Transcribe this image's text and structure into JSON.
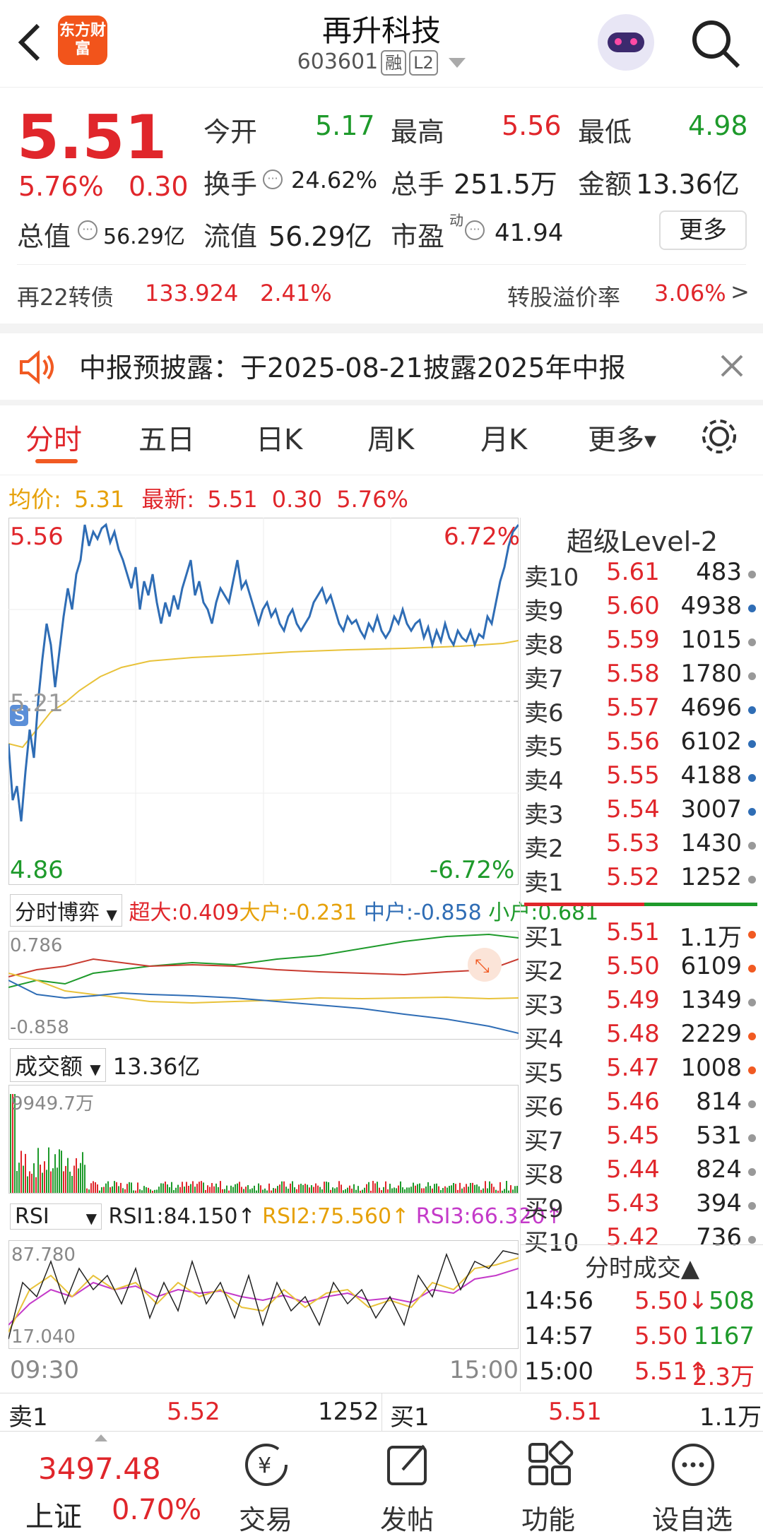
{
  "header": {
    "logo": "东方财富",
    "title": "再升科技",
    "code": "603601",
    "tag1": "融",
    "tag2": "L2"
  },
  "quote": {
    "price": "5.51",
    "change_pct": "5.76%",
    "change": "0.30",
    "open_label": "今开",
    "open": "5.17",
    "high_label": "最高",
    "high": "5.56",
    "low_label": "最低",
    "low": "4.98",
    "turnover_label": "换手",
    "turnover": "24.62%",
    "volume_label": "总手",
    "volume": "251.5万",
    "amount_label": "金额",
    "amount": "13.36亿",
    "mcap_label": "总值",
    "mcap": "56.29亿",
    "float_label": "流值",
    "float": "56.29亿",
    "pe_label": "市盈",
    "pe_sup": "动",
    "pe": "41.94",
    "more": "更多"
  },
  "bond": {
    "name": "再22转债",
    "price": "133.924",
    "pct": "2.41%",
    "premium_label": "转股溢价率",
    "premium": "3.06%",
    "arrow": ">"
  },
  "notice": {
    "text": "中报预披露：于2025-08-21披露2025年中报"
  },
  "tabs": [
    "分时",
    "五日",
    "日K",
    "周K",
    "月K",
    "更多"
  ],
  "intraday": {
    "avg_label": "均价:",
    "avg": "5.31",
    "last_label": "最新:",
    "last": "5.51",
    "last_chg": "0.30",
    "last_pct": "5.76%",
    "y_high": "5.56",
    "y_high_pct": "6.72%",
    "y_mid": "5.21",
    "y_low": "4.86",
    "y_low_pct": "-6.72%",
    "s_marker": "S"
  },
  "flow": {
    "label": "分时博弈",
    "super": "超大:0.409",
    "big": "大户:-0.231",
    "mid": "中户:-0.858",
    "small": "小户:0.681",
    "y_top": "0.786",
    "y_bottom": "-0.858"
  },
  "volume_panel": {
    "label": "成交额",
    "total": "13.36亿",
    "y_top": "9949.7万"
  },
  "rsi": {
    "label": "RSI",
    "rsi1": "RSI1:84.150↑",
    "rsi2": "RSI2:75.560↑",
    "rsi3": "RSI3:66.320↑",
    "y_top": "87.780",
    "y_bottom": "17.040",
    "t_start": "09:30",
    "t_end": "15:00"
  },
  "level2": {
    "title": "超级Level-2",
    "asks": [
      {
        "label": "卖10",
        "price": "5.61",
        "vol": "483",
        "dot": "#999"
      },
      {
        "label": "卖9",
        "price": "5.60",
        "vol": "4938",
        "dot": "#2f6db5"
      },
      {
        "label": "卖8",
        "price": "5.59",
        "vol": "1015",
        "dot": "#999"
      },
      {
        "label": "卖7",
        "price": "5.58",
        "vol": "1780",
        "dot": "#999"
      },
      {
        "label": "卖6",
        "price": "5.57",
        "vol": "4696",
        "dot": "#2f6db5"
      },
      {
        "label": "卖5",
        "price": "5.56",
        "vol": "6102",
        "dot": "#2f6db5"
      },
      {
        "label": "卖4",
        "price": "5.55",
        "vol": "4188",
        "dot": "#2f6db5"
      },
      {
        "label": "卖3",
        "price": "5.54",
        "vol": "3007",
        "dot": "#2f6db5"
      },
      {
        "label": "卖2",
        "price": "5.53",
        "vol": "1430",
        "dot": "#999"
      },
      {
        "label": "卖1",
        "price": "5.52",
        "vol": "1252",
        "dot": "#999"
      }
    ],
    "bids": [
      {
        "label": "买1",
        "price": "5.51",
        "vol": "1.1万",
        "dot": "#f15a22"
      },
      {
        "label": "买2",
        "price": "5.50",
        "vol": "6109",
        "dot": "#f15a22"
      },
      {
        "label": "买3",
        "price": "5.49",
        "vol": "1349",
        "dot": "#999"
      },
      {
        "label": "买4",
        "price": "5.48",
        "vol": "2229",
        "dot": "#f15a22"
      },
      {
        "label": "买5",
        "price": "5.47",
        "vol": "1008",
        "dot": "#f15a22"
      },
      {
        "label": "买6",
        "price": "5.46",
        "vol": "814",
        "dot": "#999"
      },
      {
        "label": "买7",
        "price": "5.45",
        "vol": "531",
        "dot": "#999"
      },
      {
        "label": "买8",
        "price": "5.44",
        "vol": "824",
        "dot": "#999"
      },
      {
        "label": "买9",
        "price": "5.43",
        "vol": "394",
        "dot": "#999"
      },
      {
        "label": "买10",
        "price": "5.42",
        "vol": "736",
        "dot": "#999"
      }
    ]
  },
  "ticks": {
    "title": "分时成交▲",
    "rows": [
      {
        "time": "14:56",
        "price": "5.50↓",
        "vol": "508"
      },
      {
        "time": "14:57",
        "price": "5.50",
        "vol": "1167"
      },
      {
        "time": "15:00",
        "price": "5.51↑",
        "vol": "2.3万"
      }
    ]
  },
  "bottom_quote": {
    "ask_label": "卖1",
    "ask_price": "5.52",
    "ask_vol": "1252",
    "bid_label": "买1",
    "bid_price": "5.51",
    "bid_vol": "1.1万"
  },
  "index": {
    "value": "3497.48",
    "name": "上证",
    "pct": "0.70%"
  },
  "nav": [
    "交易",
    "发帖",
    "功能",
    "设自选"
  ]
}
